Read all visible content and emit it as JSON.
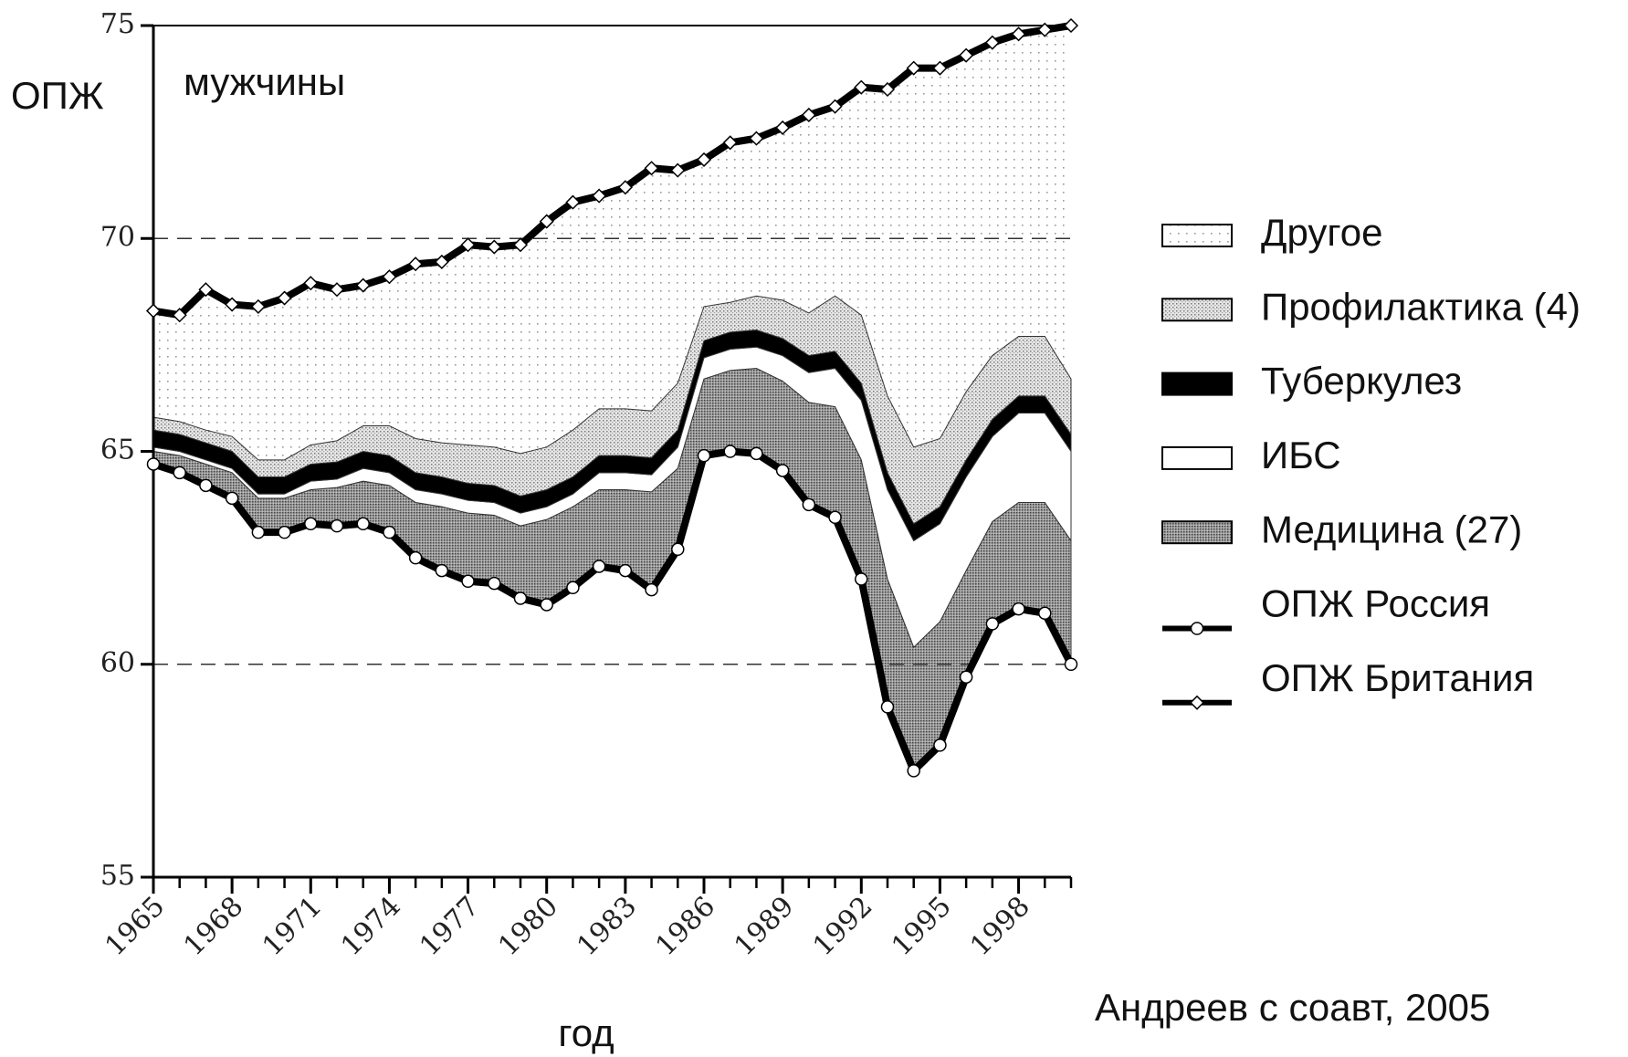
{
  "chart_data": {
    "type": "area",
    "ylabel": "ОПЖ",
    "annotation": "мужчины",
    "xlabel": "год",
    "source": "Андреев с соавт, 2005",
    "x": [
      1965,
      1966,
      1967,
      1968,
      1969,
      1970,
      1971,
      1972,
      1973,
      1974,
      1975,
      1976,
      1977,
      1978,
      1979,
      1980,
      1981,
      1982,
      1983,
      1984,
      1985,
      1986,
      1987,
      1988,
      1989,
      1990,
      1991,
      1992,
      1993,
      1994,
      1995,
      1996,
      1997,
      1998,
      1999,
      2000
    ],
    "xlim": [
      1965,
      2000
    ],
    "xticks": [
      1965,
      1968,
      1971,
      1974,
      1977,
      1980,
      1983,
      1986,
      1989,
      1992,
      1995,
      1998
    ],
    "ylim": [
      55,
      75
    ],
    "yticks": [
      55,
      60,
      65,
      70,
      75
    ],
    "gridlines": [
      60,
      70
    ],
    "series": [
      {
        "name": "Другое",
        "color": "#ffffff",
        "style": "sparse-dots"
      },
      {
        "name": "Профилактика (4)",
        "color": "#bdbdbd",
        "style": "fine-dots",
        "values": [
          0.3,
          0.3,
          0.3,
          0.35,
          0.4,
          0.4,
          0.45,
          0.5,
          0.6,
          0.7,
          0.8,
          0.8,
          0.9,
          0.9,
          1.0,
          1.0,
          1.1,
          1.1,
          1.1,
          1.1,
          1.1,
          0.8,
          0.7,
          0.8,
          0.9,
          1.0,
          1.3,
          1.6,
          1.8,
          1.8,
          1.6,
          1.6,
          1.5,
          1.4,
          1.4,
          1.3
        ]
      },
      {
        "name": "Туберкулез",
        "color": "#000000",
        "style": "solid",
        "values": [
          0.4,
          0.4,
          0.4,
          0.4,
          0.4,
          0.4,
          0.4,
          0.4,
          0.4,
          0.4,
          0.4,
          0.4,
          0.4,
          0.4,
          0.4,
          0.4,
          0.4,
          0.4,
          0.4,
          0.4,
          0.4,
          0.4,
          0.4,
          0.4,
          0.4,
          0.4,
          0.4,
          0.4,
          0.4,
          0.4,
          0.4,
          0.4,
          0.4,
          0.4,
          0.4,
          0.4
        ]
      },
      {
        "name": "ИБС",
        "color": "#ffffff",
        "style": "solid",
        "values": [
          0.1,
          0.1,
          0.1,
          0.1,
          0.1,
          0.1,
          0.2,
          0.2,
          0.3,
          0.3,
          0.3,
          0.3,
          0.3,
          0.3,
          0.3,
          0.3,
          0.3,
          0.4,
          0.4,
          0.4,
          0.5,
          0.5,
          0.5,
          0.5,
          0.6,
          0.7,
          0.9,
          1.4,
          2.1,
          2.5,
          2.3,
          2.2,
          2.0,
          2.1,
          2.1,
          2.1
        ]
      },
      {
        "name": "Медицина (27)",
        "color": "#8a8a8a",
        "style": "dense-dots",
        "values": [
          0.3,
          0.4,
          0.5,
          0.6,
          0.8,
          0.8,
          0.8,
          0.9,
          1.0,
          1.1,
          1.3,
          1.5,
          1.6,
          1.6,
          1.7,
          2.0,
          1.9,
          1.8,
          1.9,
          2.3,
          1.9,
          1.8,
          1.9,
          2.0,
          2.1,
          2.4,
          2.6,
          2.8,
          3.0,
          2.9,
          2.9,
          2.5,
          2.4,
          2.5,
          2.6,
          2.9
        ]
      },
      {
        "name": "ОПЖ Россия",
        "color": "#000000",
        "style": "line-circle",
        "values": [
          64.7,
          64.5,
          64.2,
          63.9,
          63.1,
          63.1,
          63.3,
          63.25,
          63.3,
          63.1,
          62.5,
          62.2,
          61.95,
          61.9,
          61.55,
          61.4,
          61.8,
          62.3,
          62.2,
          61.75,
          62.7,
          64.9,
          65.0,
          64.95,
          64.55,
          63.75,
          63.45,
          62.0,
          59.0,
          57.5,
          58.1,
          59.7,
          60.95,
          61.3,
          61.2,
          60.0
        ]
      },
      {
        "name": "ОПЖ Британия",
        "color": "#000000",
        "style": "line-diamond",
        "values": [
          68.3,
          68.2,
          68.8,
          68.45,
          68.4,
          68.6,
          68.95,
          68.8,
          68.9,
          69.1,
          69.4,
          69.45,
          69.85,
          69.8,
          69.85,
          70.4,
          70.85,
          71.0,
          71.2,
          71.65,
          71.6,
          71.85,
          72.25,
          72.35,
          72.6,
          72.9,
          73.1,
          73.55,
          73.5,
          74.0,
          74.0,
          74.3,
          74.6,
          74.8,
          74.9,
          75.0
        ]
      }
    ]
  }
}
